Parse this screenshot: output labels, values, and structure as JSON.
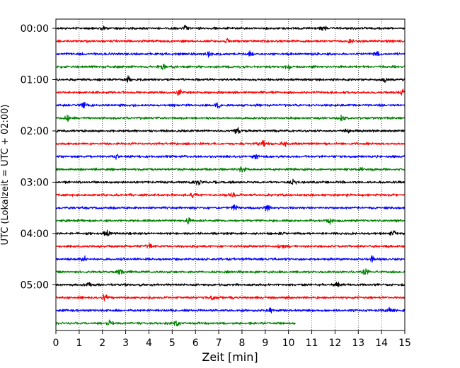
{
  "chart_data": {
    "type": "line",
    "subtype": "helicorder-seismogram",
    "xlabel": "Zeit  [min]",
    "ylabel": "UTC (Lokalzeit = UTC + 02:00)",
    "xlim": [
      0,
      15
    ],
    "x_ticks": [
      "0",
      "1",
      "2",
      "3",
      "4",
      "5",
      "6",
      "7",
      "8",
      "9",
      "10",
      "11",
      "12",
      "13",
      "14",
      "15"
    ],
    "y_ticks": [
      "00:00",
      "01:00",
      "02:00",
      "03:00",
      "04:00",
      "05:00"
    ],
    "minutes_per_line": 15,
    "trace_count": 24,
    "last_trace_end_min": 10.3,
    "trace_colors": [
      "#000000",
      "#ff0000",
      "#0000ff",
      "#008000"
    ],
    "vertical_grid": "dotted, every minute",
    "events": [
      {
        "trace": 0,
        "x": 2.0
      },
      {
        "trace": 0,
        "x": 5.6
      },
      {
        "trace": 0,
        "x": 11.5
      },
      {
        "trace": 1,
        "x": 7.4
      },
      {
        "trace": 1,
        "x": 12.7
      },
      {
        "trace": 2,
        "x": 6.6
      },
      {
        "trace": 2,
        "x": 8.4
      },
      {
        "trace": 2,
        "x": 13.8
      },
      {
        "trace": 3,
        "x": 4.6
      },
      {
        "trace": 3,
        "x": 10.0
      },
      {
        "trace": 4,
        "x": 3.1
      },
      {
        "trace": 4,
        "x": 14.1
      },
      {
        "trace": 5,
        "x": 5.3
      },
      {
        "trace": 5,
        "x": 14.9
      },
      {
        "trace": 6,
        "x": 1.2
      },
      {
        "trace": 6,
        "x": 7.0
      },
      {
        "trace": 7,
        "x": 0.5
      },
      {
        "trace": 7,
        "x": 12.3
      },
      {
        "trace": 8,
        "x": 7.8
      },
      {
        "trace": 8,
        "x": 12.5
      },
      {
        "trace": 9,
        "x": 9.8
      },
      {
        "trace": 9,
        "x": 8.9
      },
      {
        "trace": 10,
        "x": 2.6
      },
      {
        "trace": 10,
        "x": 8.6
      },
      {
        "trace": 11,
        "x": 13.1
      },
      {
        "trace": 11,
        "x": 8.0
      },
      {
        "trace": 12,
        "x": 10.2
      },
      {
        "trace": 12,
        "x": 6.1
      },
      {
        "trace": 13,
        "x": 5.9
      },
      {
        "trace": 13,
        "x": 7.6
      },
      {
        "trace": 14,
        "x": 7.7
      },
      {
        "trace": 14,
        "x": 9.1
      },
      {
        "trace": 15,
        "x": 5.7
      },
      {
        "trace": 15,
        "x": 11.8
      },
      {
        "trace": 16,
        "x": 2.2
      },
      {
        "trace": 16,
        "x": 14.5
      },
      {
        "trace": 17,
        "x": 4.0
      },
      {
        "trace": 17,
        "x": 9.7
      },
      {
        "trace": 18,
        "x": 1.2
      },
      {
        "trace": 18,
        "x": 13.6
      },
      {
        "trace": 19,
        "x": 2.8
      },
      {
        "trace": 19,
        "x": 13.3
      },
      {
        "trace": 20,
        "x": 1.4
      },
      {
        "trace": 20,
        "x": 12.1
      },
      {
        "trace": 21,
        "x": 2.1
      },
      {
        "trace": 21,
        "x": 6.7
      },
      {
        "trace": 22,
        "x": 9.2
      },
      {
        "trace": 22,
        "x": 14.3
      },
      {
        "trace": 23,
        "x": 2.3
      },
      {
        "trace": 23,
        "x": 5.2
      }
    ]
  }
}
